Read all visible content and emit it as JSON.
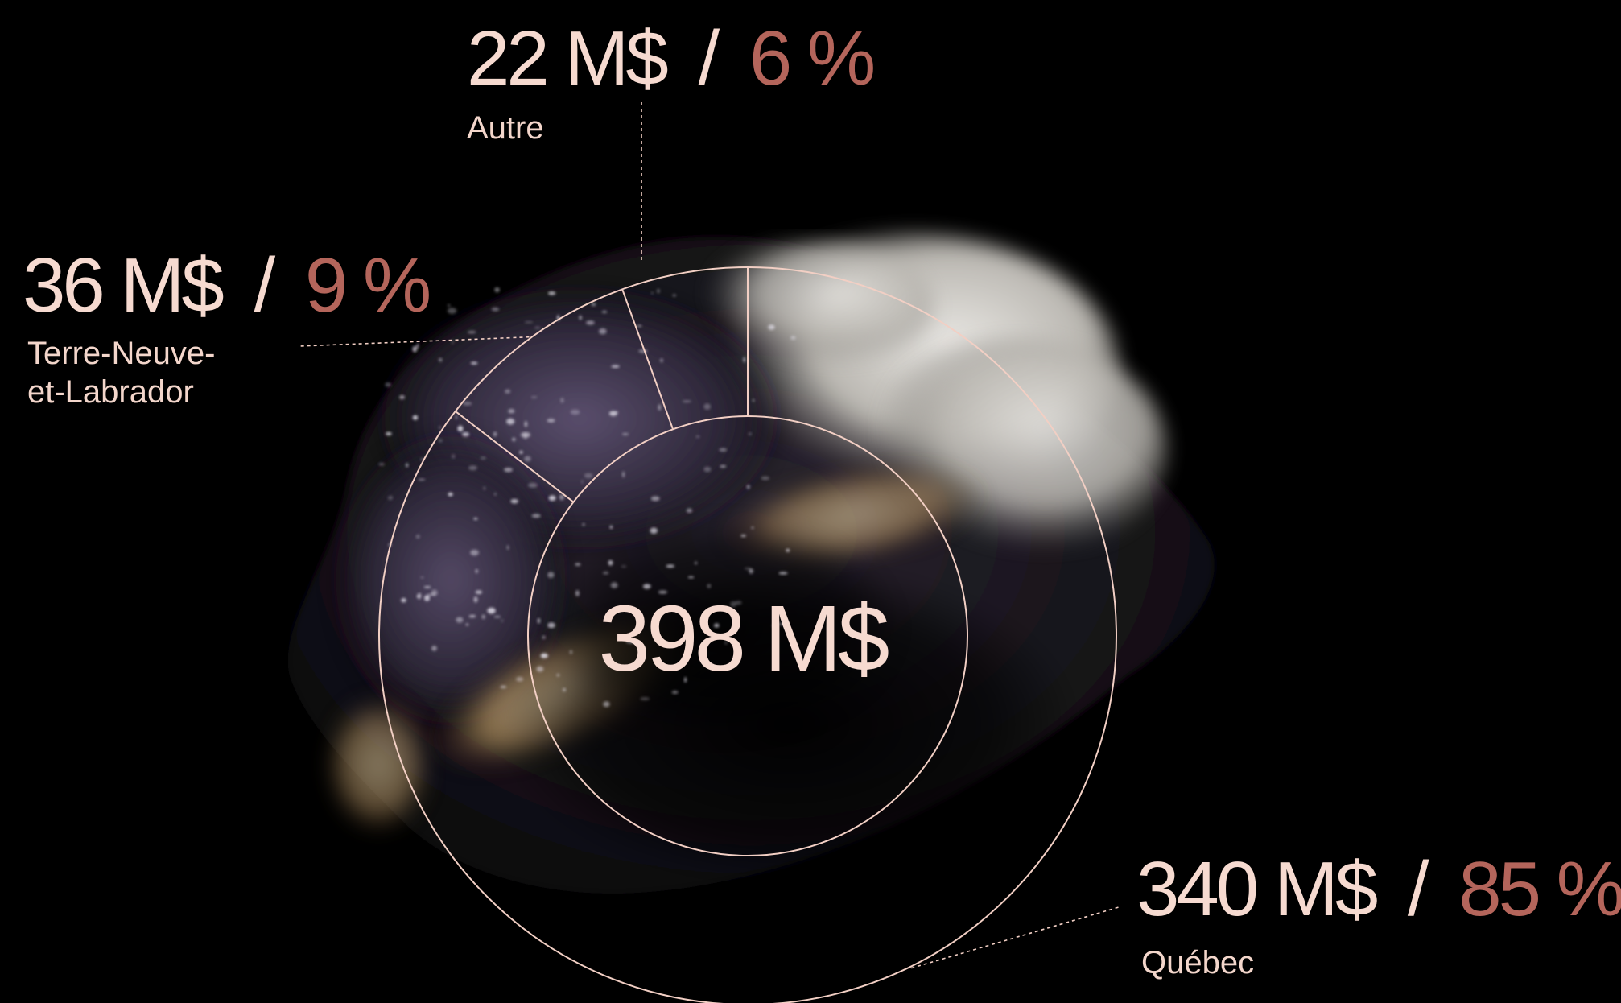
{
  "chart_data": {
    "type": "pie",
    "title": "",
    "total_label": "398 M$",
    "unit": "M$",
    "slices": [
      {
        "name": "Québec",
        "value": 340,
        "percent": 85,
        "value_label": "340 M$",
        "separator": "/",
        "percent_label": "85 %"
      },
      {
        "name": "Terre-Neuve-et-Labrador",
        "name_lines": [
          "Terre-Neuve-",
          "et-Labrador"
        ],
        "value": 36,
        "percent": 9,
        "value_label": "36 M$",
        "separator": "/",
        "percent_label": "9 %"
      },
      {
        "name": "Autre",
        "value": 22,
        "percent": 6,
        "value_label": "22 M$",
        "separator": "/",
        "percent_label": "6 %"
      }
    ]
  },
  "colors": {
    "background": "#000000",
    "line": "#f2cfc4",
    "value_text": "#f6dad0",
    "percent_text": "#b4655b",
    "label_text": "#f3d6cb"
  }
}
